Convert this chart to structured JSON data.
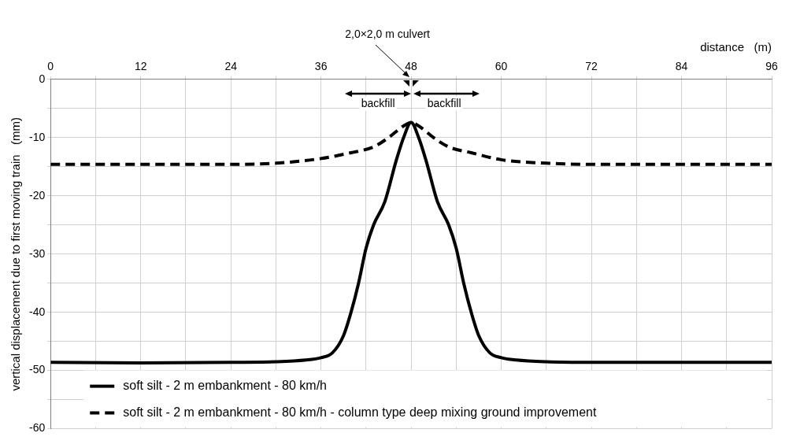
{
  "chart_data": {
    "type": "line",
    "xlabel": "distance   (m)",
    "ylabel": "vertical displacement due to first moving train   (mm)",
    "xlim": [
      0,
      96
    ],
    "xticks": [
      0,
      {
        "value": 6,
        "label": null
      },
      12,
      {
        "value": 18,
        "label": null
      },
      24,
      {
        "value": 30,
        "label": null
      },
      36,
      {
        "value": 42,
        "label": null
      },
      48,
      {
        "value": 54,
        "label": null
      },
      60,
      {
        "value": 66,
        "label": null
      },
      72,
      {
        "value": 78,
        "label": null
      },
      84,
      {
        "value": 90,
        "label": null
      },
      96
    ],
    "ylim": [
      -60,
      0
    ],
    "yticks": [
      0,
      {
        "value": -5,
        "label": null
      },
      -10,
      {
        "value": -15,
        "label": null
      },
      -20,
      {
        "value": -25,
        "label": null
      },
      -30,
      {
        "value": -35,
        "label": null
      },
      -40,
      {
        "value": -45,
        "label": null
      },
      -50,
      {
        "value": -55,
        "label": null
      },
      -60
    ],
    "grid": true,
    "legend": "bottom",
    "marker": "none",
    "series": [
      {
        "name": "soft silt - 2 m embankment - 80 km/h",
        "color": "#000000",
        "line_style": "solid",
        "x": [
          0,
          12,
          24,
          30,
          34,
          36,
          37.5,
          39,
          40,
          41,
          42,
          43,
          44.5,
          46,
          47,
          48,
          49,
          50,
          51.5,
          53,
          54,
          55,
          56,
          57,
          58.5,
          60,
          62,
          66,
          72,
          84,
          96
        ],
        "values": [
          -48.6,
          -48.7,
          -48.6,
          -48.5,
          -48.2,
          -47.8,
          -47,
          -44,
          -40,
          -35,
          -29,
          -25,
          -21,
          -14,
          -10,
          -7.4,
          -10,
          -14,
          -21,
          -25,
          -29,
          -35,
          -40,
          -44,
          -47,
          -47.8,
          -48.2,
          -48.5,
          -48.6,
          -48.6,
          -48.6
        ]
      },
      {
        "name": "soft silt - 2 m embankment - 80 km/h - column type deep mixing ground improvement",
        "color": "#000000",
        "line_style": "dashed",
        "x": [
          0,
          24,
          30,
          36,
          40,
          43,
          45,
          47,
          48,
          49,
          51,
          53,
          56,
          60,
          66,
          72,
          96
        ],
        "values": [
          -14.6,
          -14.6,
          -14.4,
          -13.6,
          -12.6,
          -11.6,
          -10,
          -8,
          -7.4,
          -8,
          -10,
          -11.6,
          -12.6,
          -13.8,
          -14.4,
          -14.6,
          -14.6
        ]
      }
    ],
    "annotations": [
      "2,0×2,0 m culvert",
      "backfill",
      "backfill"
    ]
  }
}
